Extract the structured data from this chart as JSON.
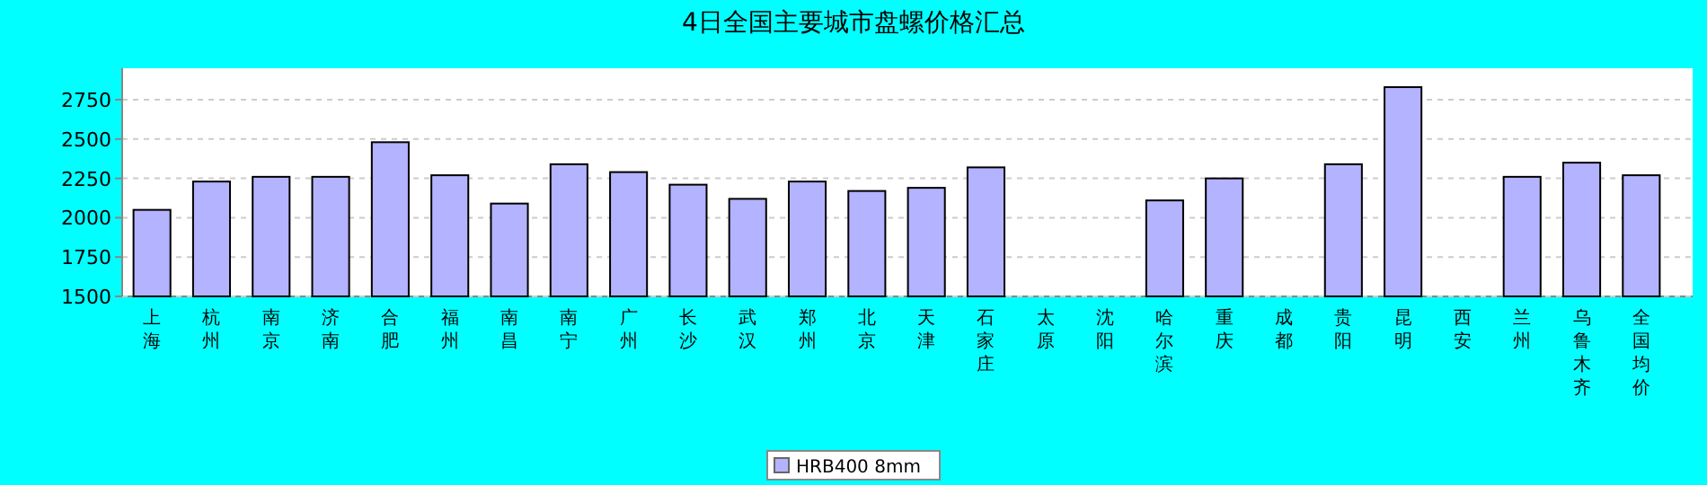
{
  "chart_data": {
    "type": "bar",
    "title": "4日全国主要城市盘螺价格汇总",
    "categories": [
      "上海",
      "杭州",
      "南京",
      "济南",
      "合肥",
      "福州",
      "南昌",
      "南宁",
      "广州",
      "长沙",
      "武汉",
      "郑州",
      "北京",
      "天津",
      "石家庄",
      "太原",
      "沈阳",
      "哈尔滨",
      "重庆",
      "成都",
      "贵阳",
      "昆明",
      "西安",
      "兰州",
      "乌鲁木齐",
      "全国均价"
    ],
    "series": [
      {
        "name": "HRB400 8mm",
        "color": "#b3b3ff",
        "values": [
          2050,
          2230,
          2260,
          2260,
          2480,
          2270,
          2090,
          2340,
          2290,
          2210,
          2120,
          2230,
          2170,
          2190,
          2320,
          null,
          null,
          2110,
          2250,
          null,
          2340,
          2830,
          null,
          2260,
          2350,
          2270
        ]
      }
    ],
    "ylim": [
      1500,
      2950
    ],
    "yticks": [
      1500,
      1750,
      2000,
      2250,
      2500,
      2750
    ],
    "grid": "y",
    "legend": "bottom"
  }
}
